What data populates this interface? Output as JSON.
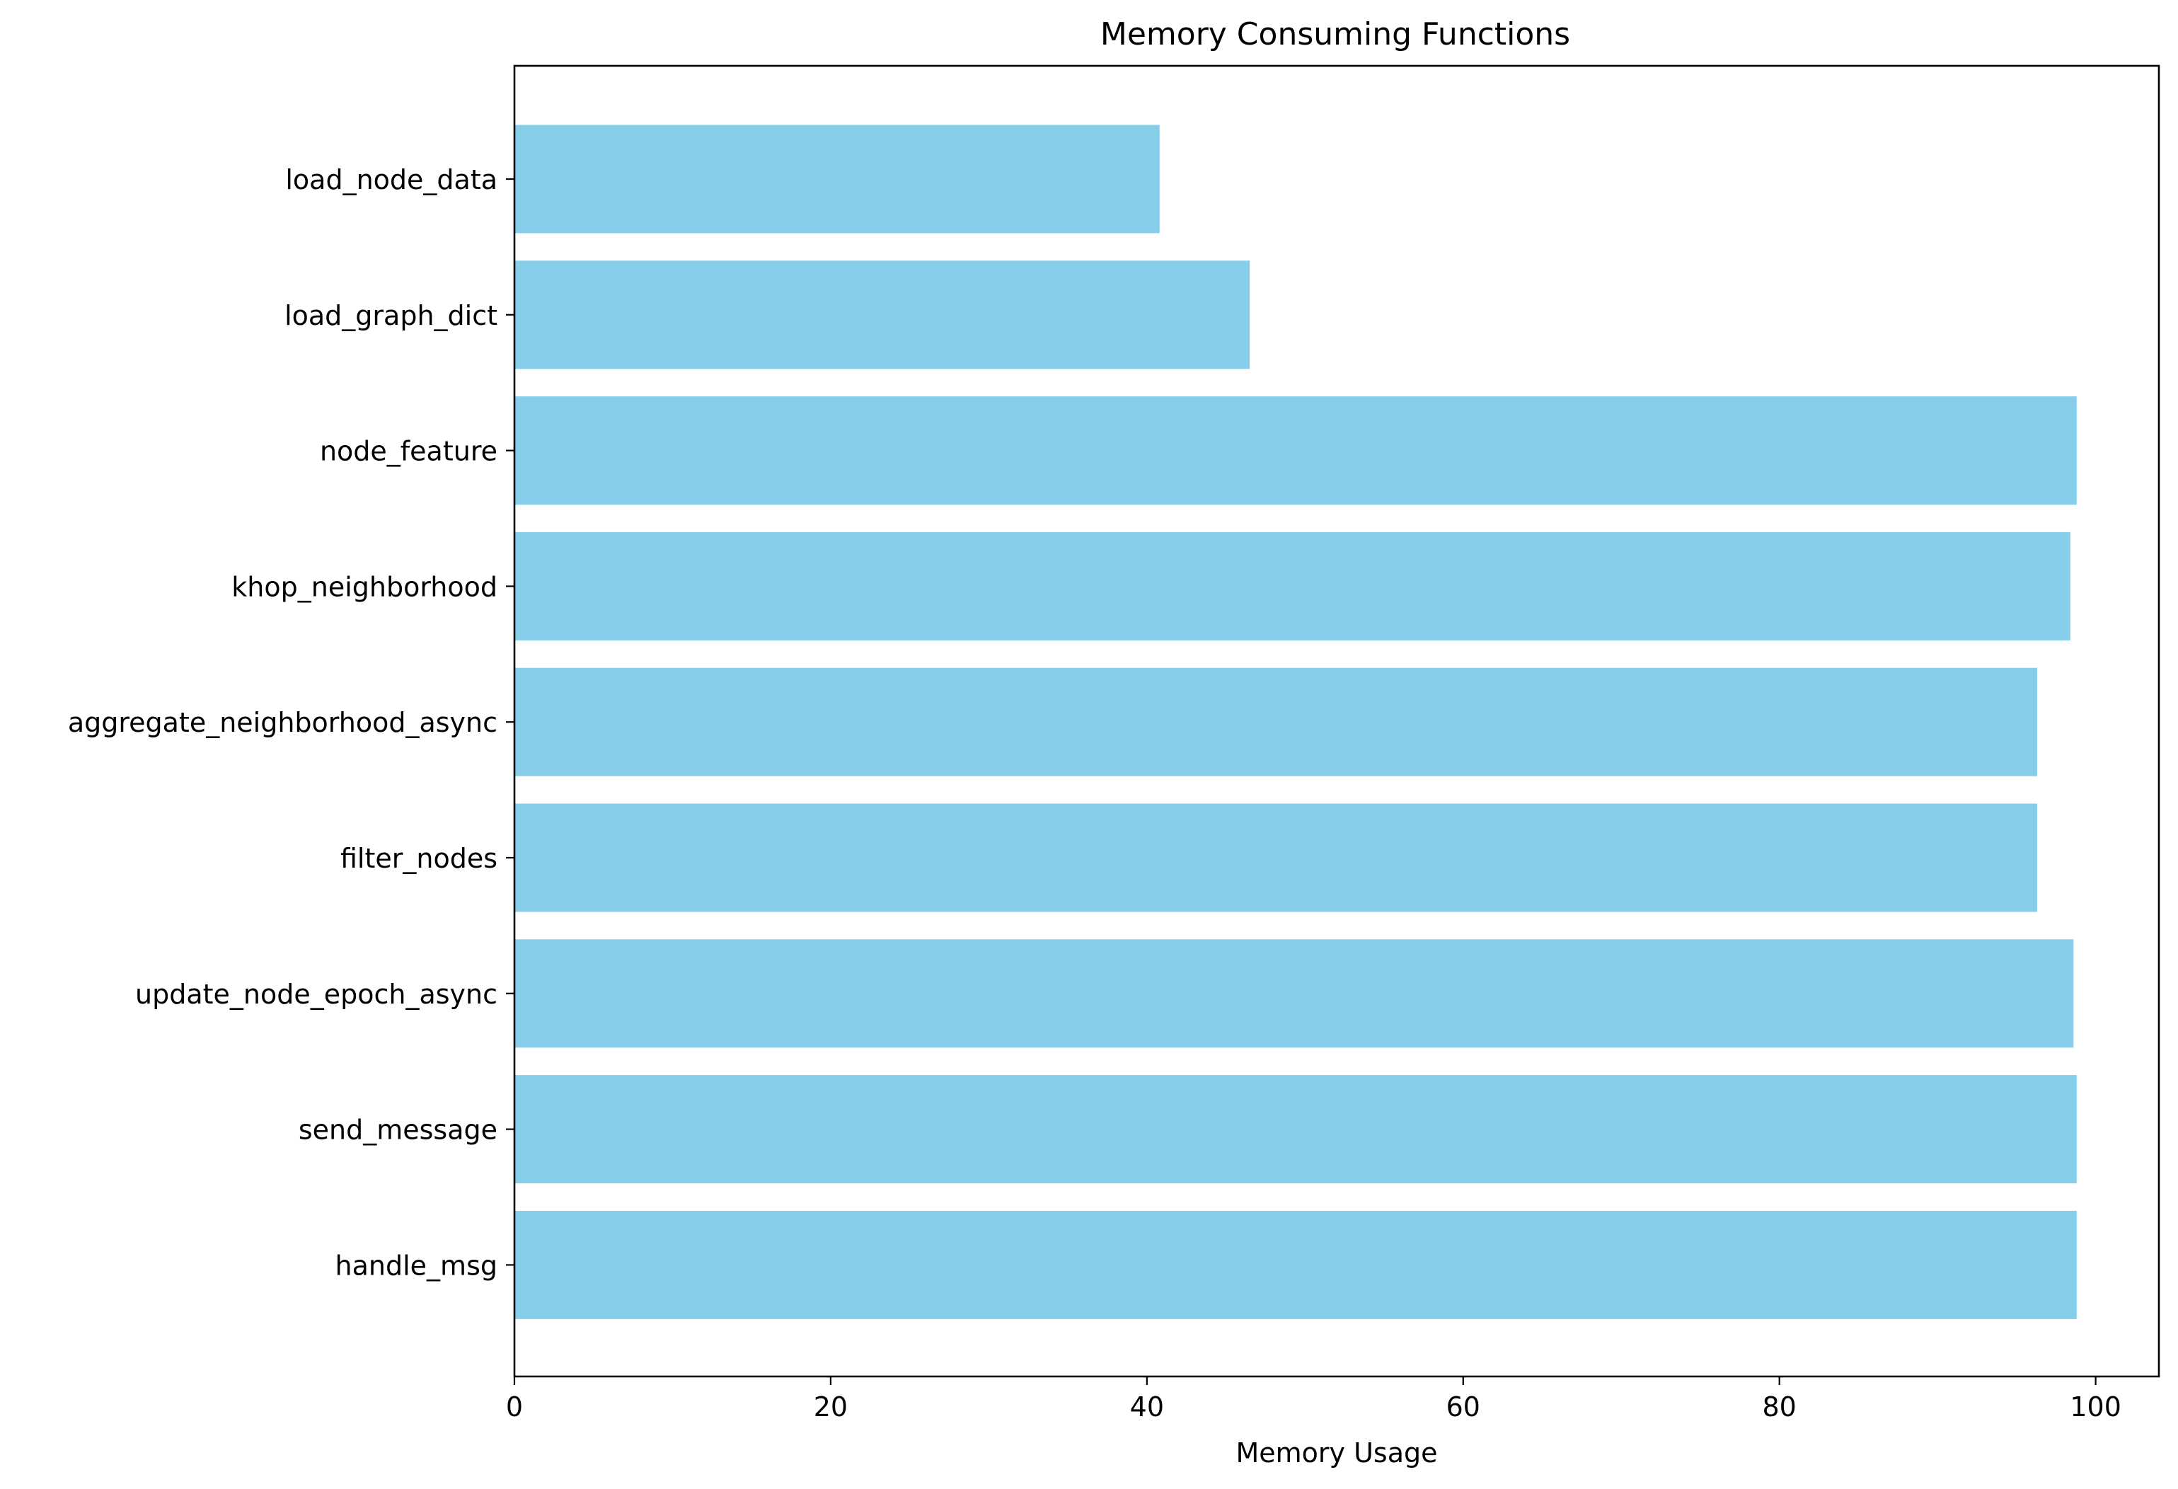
{
  "chart_data": {
    "type": "bar",
    "orientation": "horizontal",
    "title": "Memory Consuming Functions",
    "xlabel": "Memory Usage",
    "ylabel": "",
    "xlim": [
      0,
      104
    ],
    "x_ticks": [
      0,
      20,
      40,
      60,
      80,
      100
    ],
    "categories": [
      "load_node_data",
      "load_graph_dict",
      "node_feature",
      "khop_neighborhood",
      "aggregate_neighborhood_async",
      "filter_nodes",
      "update_node_epoch_async",
      "send_message",
      "handle_msg"
    ],
    "values": [
      40.8,
      46.5,
      98.8,
      98.4,
      96.3,
      96.3,
      98.6,
      98.8,
      98.8
    ],
    "bar_color": "#87ceeb",
    "grid": false,
    "legend": "none"
  }
}
